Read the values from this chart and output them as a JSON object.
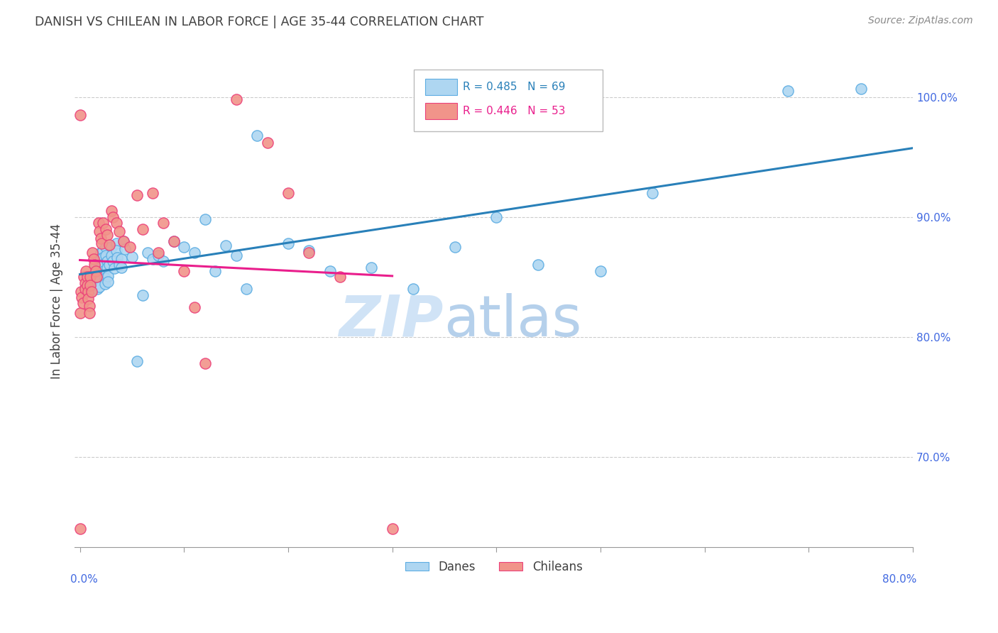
{
  "title": "DANISH VS CHILEAN IN LABOR FORCE | AGE 35-44 CORRELATION CHART",
  "source": "Source: ZipAtlas.com",
  "xlabel_ticks_left": "0.0%",
  "xlabel_ticks_right": "80.0%",
  "ylabel": "In Labor Force | Age 35-44",
  "ylabel_ticks": [
    "100.0%",
    "90.0%",
    "80.0%",
    "70.0%"
  ],
  "ylabel_vals": [
    1.0,
    0.9,
    0.8,
    0.7
  ],
  "xlim": [
    -0.005,
    0.8
  ],
  "ylim": [
    0.625,
    1.035
  ],
  "danes_R": 0.485,
  "danes_N": 69,
  "chileans_R": 0.446,
  "chileans_N": 53,
  "danes_color": "#AED6F1",
  "chileans_color": "#F1948A",
  "danes_edge_color": "#5DADE2",
  "chileans_edge_color": "#EC407A",
  "danes_line_color": "#2980B9",
  "chileans_line_color": "#E91E8C",
  "danes_x": [
    0.005,
    0.008,
    0.01,
    0.012,
    0.015,
    0.015,
    0.016,
    0.016,
    0.017,
    0.018,
    0.018,
    0.019,
    0.019,
    0.02,
    0.02,
    0.02,
    0.022,
    0.022,
    0.023,
    0.023,
    0.024,
    0.024,
    0.025,
    0.025,
    0.026,
    0.026,
    0.027,
    0.027,
    0.028,
    0.03,
    0.03,
    0.032,
    0.033,
    0.035,
    0.035,
    0.036,
    0.038,
    0.04,
    0.04,
    0.042,
    0.043,
    0.05,
    0.055,
    0.06,
    0.065,
    0.07,
    0.075,
    0.08,
    0.09,
    0.1,
    0.11,
    0.12,
    0.13,
    0.14,
    0.15,
    0.16,
    0.17,
    0.2,
    0.22,
    0.24,
    0.28,
    0.32,
    0.36,
    0.4,
    0.44,
    0.5,
    0.55,
    0.68,
    0.75
  ],
  "danes_y": [
    0.84,
    0.843,
    0.838,
    0.845,
    0.86,
    0.855,
    0.85,
    0.845,
    0.84,
    0.858,
    0.852,
    0.848,
    0.842,
    0.87,
    0.865,
    0.858,
    0.872,
    0.866,
    0.861,
    0.855,
    0.849,
    0.844,
    0.875,
    0.868,
    0.863,
    0.858,
    0.851,
    0.846,
    0.86,
    0.875,
    0.868,
    0.863,
    0.857,
    0.878,
    0.872,
    0.866,
    0.86,
    0.865,
    0.858,
    0.88,
    0.873,
    0.867,
    0.78,
    0.835,
    0.87,
    0.865,
    0.868,
    0.863,
    0.88,
    0.875,
    0.87,
    0.898,
    0.855,
    0.876,
    0.868,
    0.84,
    0.968,
    0.878,
    0.872,
    0.855,
    0.858,
    0.84,
    0.875,
    0.9,
    0.86,
    0.855,
    0.92,
    1.005,
    1.007
  ],
  "chileans_x": [
    0.0,
    0.0,
    0.0,
    0.001,
    0.002,
    0.003,
    0.004,
    0.005,
    0.005,
    0.006,
    0.007,
    0.007,
    0.008,
    0.008,
    0.009,
    0.009,
    0.01,
    0.01,
    0.011,
    0.012,
    0.013,
    0.014,
    0.015,
    0.016,
    0.018,
    0.019,
    0.02,
    0.021,
    0.022,
    0.025,
    0.026,
    0.028,
    0.03,
    0.032,
    0.035,
    0.038,
    0.042,
    0.048,
    0.055,
    0.06,
    0.07,
    0.075,
    0.08,
    0.09,
    0.1,
    0.11,
    0.12,
    0.15,
    0.18,
    0.2,
    0.22,
    0.25,
    0.3
  ],
  "chileans_y": [
    0.985,
    0.82,
    0.64,
    0.838,
    0.833,
    0.828,
    0.85,
    0.845,
    0.84,
    0.855,
    0.85,
    0.843,
    0.838,
    0.832,
    0.826,
    0.82,
    0.85,
    0.843,
    0.838,
    0.87,
    0.865,
    0.86,
    0.855,
    0.85,
    0.895,
    0.888,
    0.882,
    0.878,
    0.895,
    0.89,
    0.885,
    0.877,
    0.905,
    0.9,
    0.895,
    0.888,
    0.88,
    0.875,
    0.918,
    0.89,
    0.92,
    0.87,
    0.895,
    0.88,
    0.855,
    0.825,
    0.778,
    0.998,
    0.962,
    0.92,
    0.87,
    0.85,
    0.64
  ],
  "watermark_zip": "ZIP",
  "watermark_atlas": "atlas",
  "title_color": "#404040",
  "axis_color": "#4169E1",
  "grid_color": "#CCCCCC",
  "tick_marks_x": [
    0.0,
    0.1,
    0.2,
    0.3,
    0.4,
    0.5,
    0.6,
    0.7,
    0.8
  ]
}
